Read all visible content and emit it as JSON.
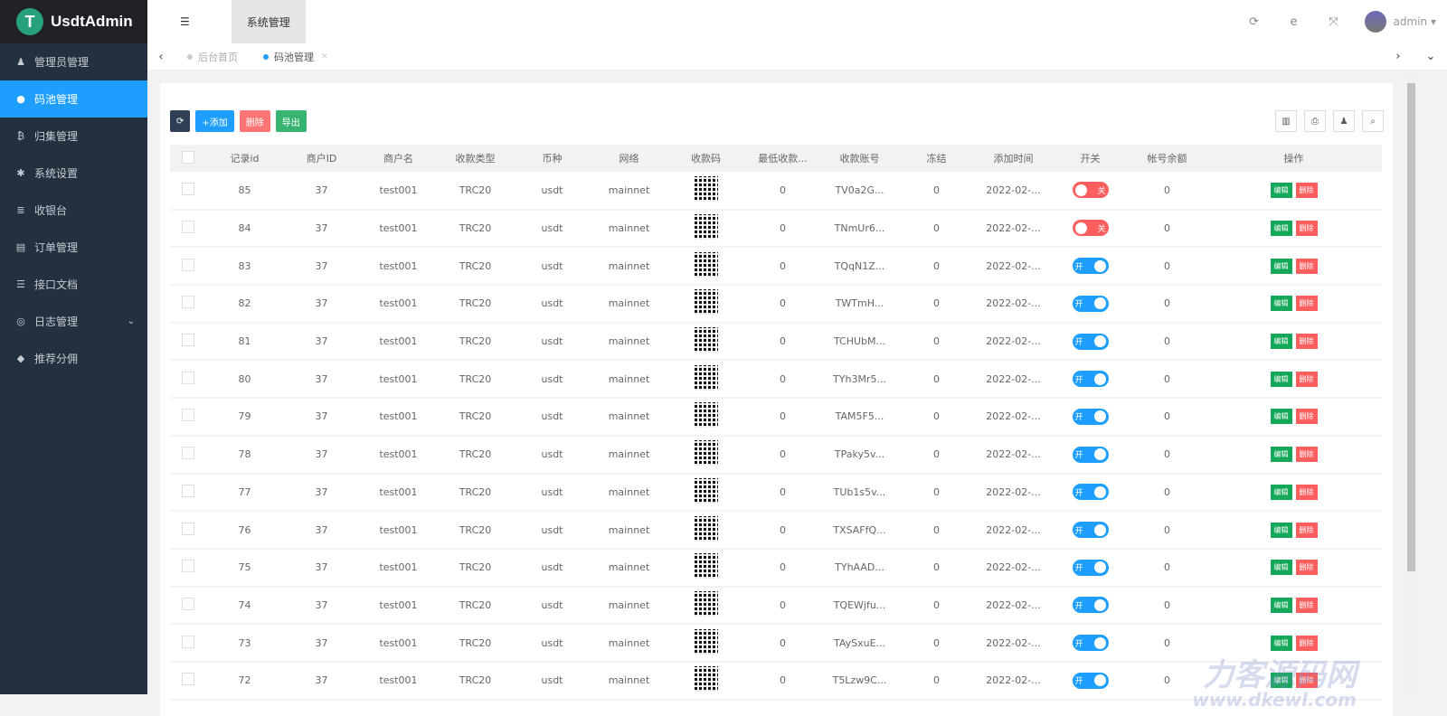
{
  "app": {
    "title": "UsdtAdmin",
    "logo_letter": "T"
  },
  "sidebar": {
    "items": [
      {
        "label": "管理员管理",
        "icon": "user-icon",
        "glyph": "♟"
      },
      {
        "label": "码池管理",
        "icon": "circle-icon",
        "glyph": "●",
        "active": true
      },
      {
        "label": "归集管理",
        "icon": "bitcoin-icon",
        "glyph": "₿"
      },
      {
        "label": "系统设置",
        "icon": "gear-icon",
        "glyph": "✱"
      },
      {
        "label": "收银台",
        "icon": "list-icon",
        "glyph": "≣"
      },
      {
        "label": "订单管理",
        "icon": "table-icon",
        "glyph": "▤"
      },
      {
        "label": "接口文档",
        "icon": "doc-icon",
        "glyph": "☰"
      },
      {
        "label": "日志管理",
        "icon": "log-icon",
        "glyph": "◎",
        "expandable": true
      },
      {
        "label": "推荐分佣",
        "icon": "diamond-icon",
        "glyph": "◆"
      }
    ]
  },
  "header": {
    "menu_toggle": "☰",
    "tab": "系统管理",
    "user": "admin"
  },
  "breadcrumb": {
    "tabs": [
      {
        "label": "后台首页"
      },
      {
        "label": "码池管理",
        "active": true
      }
    ]
  },
  "toolbar": {
    "refresh": "⟳",
    "add": "+添加",
    "delete": "删除",
    "export": "导出"
  },
  "table": {
    "columns": [
      "记录id",
      "商户ID",
      "商户名",
      "收款类型",
      "币种",
      "网络",
      "收款码",
      "最低收款...",
      "收款账号",
      "冻结",
      "添加时间",
      "开关",
      "帐号余额",
      "操作"
    ],
    "switch_on": "开",
    "switch_off": "关",
    "edit": "编辑",
    "remove": "删除",
    "rows": [
      {
        "id": "85",
        "mid": "37",
        "name": "test001",
        "type": "TRC20",
        "coin": "usdt",
        "net": "mainnet",
        "min": "0",
        "acct": "TV0a2G...",
        "frozen": "0",
        "time": "2022-02-...",
        "on": false,
        "bal": "0"
      },
      {
        "id": "84",
        "mid": "37",
        "name": "test001",
        "type": "TRC20",
        "coin": "usdt",
        "net": "mainnet",
        "min": "0",
        "acct": "TNmUr6...",
        "frozen": "0",
        "time": "2022-02-...",
        "on": false,
        "bal": "0"
      },
      {
        "id": "83",
        "mid": "37",
        "name": "test001",
        "type": "TRC20",
        "coin": "usdt",
        "net": "mainnet",
        "min": "0",
        "acct": "TQqN1Z...",
        "frozen": "0",
        "time": "2022-02-...",
        "on": true,
        "bal": "0"
      },
      {
        "id": "82",
        "mid": "37",
        "name": "test001",
        "type": "TRC20",
        "coin": "usdt",
        "net": "mainnet",
        "min": "0",
        "acct": "TWTmH...",
        "frozen": "0",
        "time": "2022-02-...",
        "on": true,
        "bal": "0"
      },
      {
        "id": "81",
        "mid": "37",
        "name": "test001",
        "type": "TRC20",
        "coin": "usdt",
        "net": "mainnet",
        "min": "0",
        "acct": "TCHUbM...",
        "frozen": "0",
        "time": "2022-02-...",
        "on": true,
        "bal": "0"
      },
      {
        "id": "80",
        "mid": "37",
        "name": "test001",
        "type": "TRC20",
        "coin": "usdt",
        "net": "mainnet",
        "min": "0",
        "acct": "TYh3Mr5...",
        "frozen": "0",
        "time": "2022-02-...",
        "on": true,
        "bal": "0"
      },
      {
        "id": "79",
        "mid": "37",
        "name": "test001",
        "type": "TRC20",
        "coin": "usdt",
        "net": "mainnet",
        "min": "0",
        "acct": "TAM5F5...",
        "frozen": "0",
        "time": "2022-02-...",
        "on": true,
        "bal": "0"
      },
      {
        "id": "78",
        "mid": "37",
        "name": "test001",
        "type": "TRC20",
        "coin": "usdt",
        "net": "mainnet",
        "min": "0",
        "acct": "TPaky5v...",
        "frozen": "0",
        "time": "2022-02-...",
        "on": true,
        "bal": "0"
      },
      {
        "id": "77",
        "mid": "37",
        "name": "test001",
        "type": "TRC20",
        "coin": "usdt",
        "net": "mainnet",
        "min": "0",
        "acct": "TUb1s5v...",
        "frozen": "0",
        "time": "2022-02-...",
        "on": true,
        "bal": "0"
      },
      {
        "id": "76",
        "mid": "37",
        "name": "test001",
        "type": "TRC20",
        "coin": "usdt",
        "net": "mainnet",
        "min": "0",
        "acct": "TXSAFfQ...",
        "frozen": "0",
        "time": "2022-02-...",
        "on": true,
        "bal": "0"
      },
      {
        "id": "75",
        "mid": "37",
        "name": "test001",
        "type": "TRC20",
        "coin": "usdt",
        "net": "mainnet",
        "min": "0",
        "acct": "TYhAAD...",
        "frozen": "0",
        "time": "2022-02-...",
        "on": true,
        "bal": "0"
      },
      {
        "id": "74",
        "mid": "37",
        "name": "test001",
        "type": "TRC20",
        "coin": "usdt",
        "net": "mainnet",
        "min": "0",
        "acct": "TQEWjfu...",
        "frozen": "0",
        "time": "2022-02-...",
        "on": true,
        "bal": "0"
      },
      {
        "id": "73",
        "mid": "37",
        "name": "test001",
        "type": "TRC20",
        "coin": "usdt",
        "net": "mainnet",
        "min": "0",
        "acct": "TAySxuE...",
        "frozen": "0",
        "time": "2022-02-...",
        "on": true,
        "bal": "0"
      },
      {
        "id": "72",
        "mid": "37",
        "name": "test001",
        "type": "TRC20",
        "coin": "usdt",
        "net": "mainnet",
        "min": "0",
        "acct": "T5Lzw9C...",
        "frozen": "0",
        "time": "2022-02-...",
        "on": true,
        "bal": "0"
      }
    ]
  },
  "watermark": {
    "line1": "力客源码网",
    "line2": "www.dkewl.com"
  }
}
